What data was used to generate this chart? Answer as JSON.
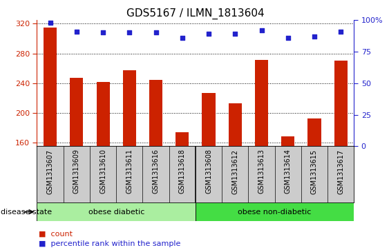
{
  "title": "GDS5167 / ILMN_1813604",
  "samples": [
    "GSM1313607",
    "GSM1313609",
    "GSM1313610",
    "GSM1313611",
    "GSM1313616",
    "GSM1313618",
    "GSM1313608",
    "GSM1313612",
    "GSM1313613",
    "GSM1313614",
    "GSM1313615",
    "GSM1313617"
  ],
  "counts": [
    315,
    247,
    242,
    257,
    244,
    174,
    227,
    213,
    271,
    168,
    192,
    270
  ],
  "percentile_ranks": [
    98,
    91,
    90,
    90,
    90,
    86,
    89,
    89,
    92,
    86,
    87,
    91
  ],
  "ylim_left": [
    155,
    325
  ],
  "ylim_right": [
    0,
    100
  ],
  "yticks_left": [
    160,
    200,
    240,
    280,
    320
  ],
  "yticks_right": [
    0,
    25,
    50,
    75,
    100
  ],
  "bar_color": "#CC2200",
  "dot_color": "#2222CC",
  "bar_width": 0.5,
  "sample_bg_color": "#CCCCCC",
  "plot_bg": "#FFFFFF",
  "group1_color": "#AAEEA0",
  "group2_color": "#44DD44",
  "title_fontsize": 11,
  "tick_fontsize": 8,
  "n_group1": 6,
  "n_group2": 6
}
